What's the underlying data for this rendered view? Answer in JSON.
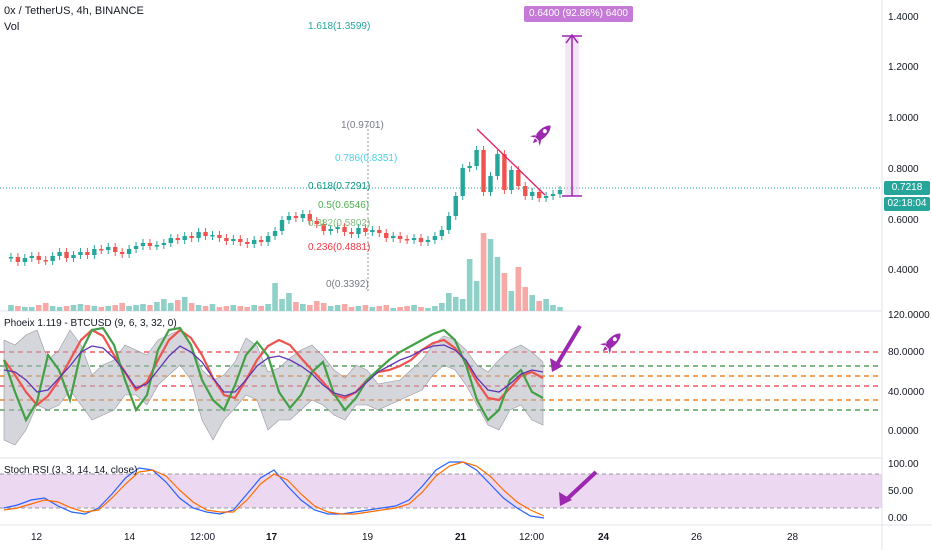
{
  "header": {
    "symbol_line": "0x / TetherUS, 4h, BINANCE",
    "vol_label": "Vol"
  },
  "measure_label": "0.6400 (92.86%) 6400",
  "fib_levels": [
    {
      "label": "1.618(1.3599)",
      "color": "#26a69a"
    },
    {
      "label": "1(0.9701)",
      "color": "#787b86"
    },
    {
      "label": "0.786(0.8351)",
      "color": "#4dd0e1"
    },
    {
      "label": "0.618(0.7291)",
      "color": "#089981"
    },
    {
      "label": "0.5(0.6546)",
      "color": "#4caf50"
    },
    {
      "label": "0.382(0.5802)",
      "color": "#80c080"
    },
    {
      "label": "0.236(0.4881)",
      "color": "#f23645"
    },
    {
      "label": "0(0.3392)",
      "color": "#787b86"
    }
  ],
  "price_scale": [
    "1.4000",
    "1.2000",
    "1.0000",
    "0.8000",
    "0.6000",
    "0.4000"
  ],
  "current_price": {
    "value": "0.7218",
    "countdown": "02:18:04",
    "color": "#26a69a"
  },
  "indicator1": {
    "title": "Phoeix 1.119 - BTCUSD (9, 6, 3, 32, 0)",
    "scale": [
      "120.0000",
      "80.0000",
      "40.0000",
      "0.0000"
    ]
  },
  "indicator2": {
    "title": "Stoch RSI (3, 3, 14, 14, close)",
    "scale": [
      "100.00",
      "50.00",
      "0.00"
    ]
  },
  "time_axis": [
    "12",
    "14",
    "12:00",
    "17",
    "19",
    "21",
    "12:00",
    "24",
    "26",
    "28"
  ],
  "colors": {
    "up": "#26a69a",
    "down": "#ef5350",
    "purple": "#9c27b0",
    "stoch_bg": "#e1bee7"
  }
}
